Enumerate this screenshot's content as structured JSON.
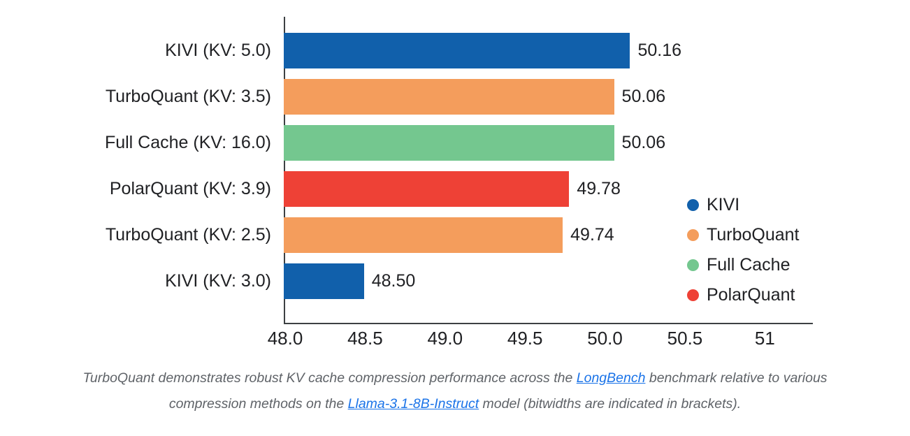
{
  "chart_data": {
    "type": "bar",
    "orientation": "horizontal",
    "title": "",
    "xlabel": "",
    "ylabel": "",
    "categories": [
      "KIVI (KV: 5.0)",
      "TurboQuant (KV: 3.5)",
      "Full Cache (KV: 16.0)",
      "PolarQuant (KV: 3.9)",
      "TurboQuant (KV: 2.5)",
      "KIVI (KV: 3.0)"
    ],
    "values": [
      50.16,
      50.06,
      50.06,
      49.78,
      49.74,
      48.5
    ],
    "value_labels": [
      "50.16",
      "50.06",
      "50.06",
      "49.78",
      "49.74",
      "48.50"
    ],
    "bar_series": [
      "KIVI",
      "TurboQuant",
      "Full Cache",
      "PolarQuant",
      "TurboQuant",
      "KIVI"
    ],
    "x_ticks": [
      "48.0",
      "48.5",
      "49.0",
      "49.5",
      "50.0",
      "50.5",
      "51"
    ],
    "x_tick_values": [
      48,
      48.5,
      49,
      49.5,
      50,
      50.5,
      51
    ],
    "xlim": [
      48,
      51.3
    ],
    "grid": false,
    "legend_position": "inside-right",
    "legend": [
      {
        "name": "KIVI",
        "color": "#1160ab"
      },
      {
        "name": "TurboQuant",
        "color": "#f49d5c"
      },
      {
        "name": "Full Cache",
        "color": "#74c78f"
      },
      {
        "name": "PolarQuant",
        "color": "#ee4136"
      }
    ]
  },
  "palette": {
    "axis_color": "#3c4043",
    "text_color": "#202124",
    "caption_color": "#5f6368",
    "link_color": "#1a73e8",
    "background": "#ffffff"
  },
  "caption": {
    "segments": [
      {
        "text": "TurboQuant demonstrates robust KV cache compression performance across the ",
        "link": false
      },
      {
        "text": "LongBench",
        "link": true
      },
      {
        "text": " benchmark relative to various compression methods on the ",
        "link": false
      },
      {
        "text": "Llama-3.1-8B-Instruct",
        "link": true
      },
      {
        "text": " model (bitwidths are indicated in brackets).",
        "link": false
      }
    ]
  }
}
